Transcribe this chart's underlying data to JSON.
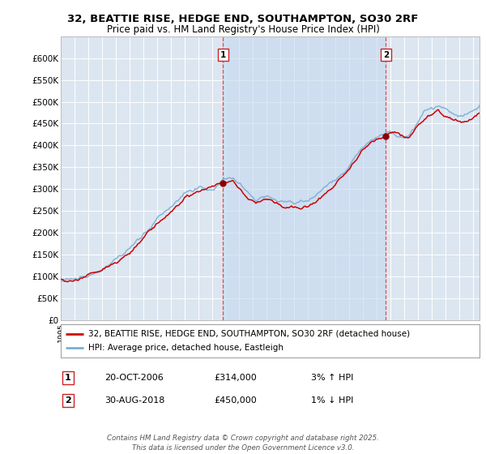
{
  "title": "32, BEATTIE RISE, HEDGE END, SOUTHAMPTON, SO30 2RF",
  "subtitle": "Price paid vs. HM Land Registry's House Price Index (HPI)",
  "ylim": [
    0,
    650000
  ],
  "yticks": [
    0,
    50000,
    100000,
    150000,
    200000,
    250000,
    300000,
    350000,
    400000,
    450000,
    500000,
    550000,
    600000
  ],
  "xlim_start": 1995.0,
  "xlim_end": 2025.5,
  "background_color": "#ffffff",
  "plot_bg_color": "#dce6f1",
  "grid_color": "#ffffff",
  "shade_color": "#c5d8ee",
  "line1_color": "#cc0000",
  "line2_color": "#7bafd4",
  "marker1_date": 2006.8,
  "marker2_date": 2018.67,
  "marker1_value": 314000,
  "marker2_value": 450000,
  "marker1_label": "1",
  "marker2_label": "2",
  "legend_line1": "32, BEATTIE RISE, HEDGE END, SOUTHAMPTON, SO30 2RF (detached house)",
  "legend_line2": "HPI: Average price, detached house, Eastleigh",
  "annotation1_num": "1",
  "annotation1_date": "20-OCT-2006",
  "annotation1_price": "£314,000",
  "annotation1_hpi": "3% ↑ HPI",
  "annotation2_num": "2",
  "annotation2_date": "30-AUG-2018",
  "annotation2_price": "£450,000",
  "annotation2_hpi": "1% ↓ HPI",
  "footer": "Contains HM Land Registry data © Crown copyright and database right 2025.\nThis data is licensed under the Open Government Licence v3.0.",
  "title_fontsize": 9.5,
  "subtitle_fontsize": 8.5
}
